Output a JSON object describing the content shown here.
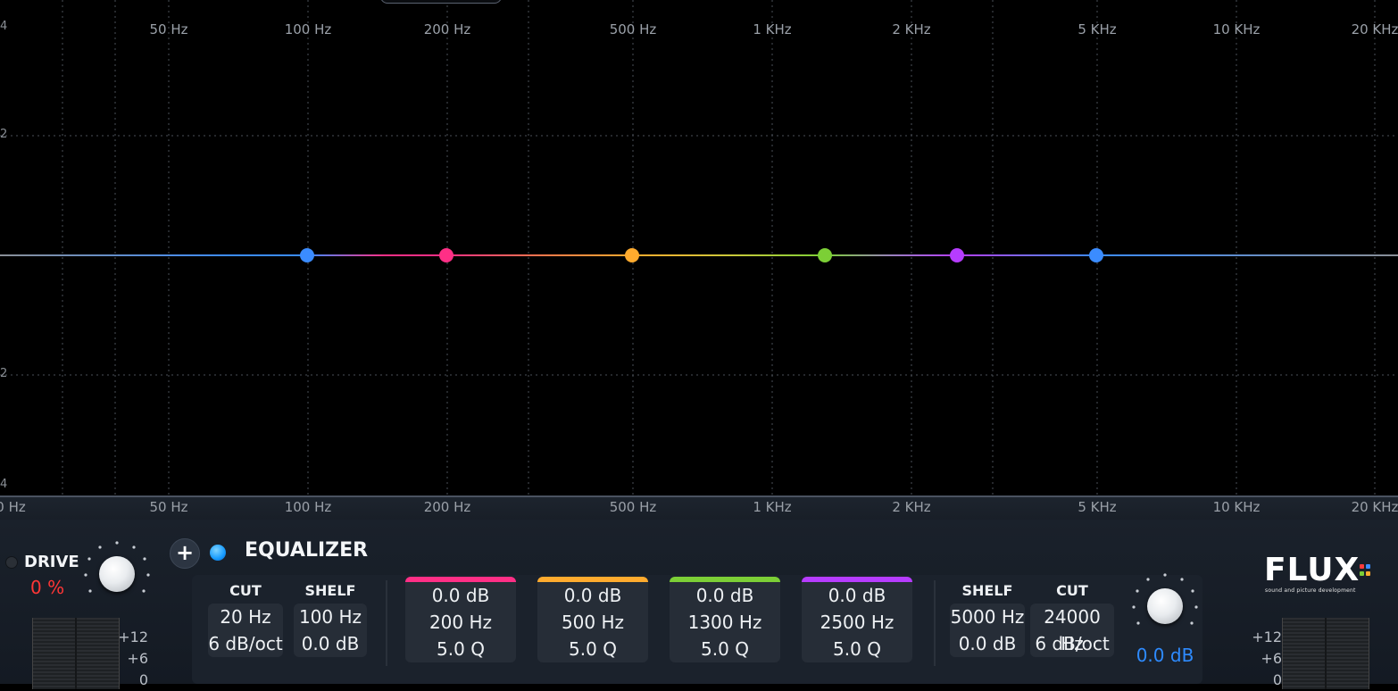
{
  "graph": {
    "freq_labels": [
      "50 Hz",
      "100 Hz",
      "200 Hz",
      "500 Hz",
      "1 KHz",
      "2 KHz",
      "5 KHz",
      "10 KHz",
      "20 KHz"
    ],
    "bottom_freq_labels": [
      "0 Hz",
      "50 Hz",
      "100 Hz",
      "200 Hz",
      "500 Hz",
      "1 KHz",
      "2 KHz",
      "5 KHz",
      "10 KHz",
      "20 KHz"
    ],
    "db_ticks": [
      "4",
      "2",
      "2",
      "4"
    ],
    "nodes": [
      {
        "name": "band-cut-low",
        "color": "#3b8cff"
      },
      {
        "name": "band-1",
        "color": "#ff2f86"
      },
      {
        "name": "band-2",
        "color": "#ffab2e"
      },
      {
        "name": "band-3",
        "color": "#7ccf36"
      },
      {
        "name": "band-4",
        "color": "#b63cff"
      },
      {
        "name": "band-shelf-high",
        "color": "#3b8cff"
      }
    ]
  },
  "drive": {
    "label": "DRIVE",
    "value": "0 %",
    "scale": [
      "+12",
      "+6",
      "0"
    ]
  },
  "equalizer": {
    "title": "EQUALIZER",
    "plus_glyph": "+",
    "low_cut": {
      "header": "CUT",
      "freq": "20 Hz",
      "slope": "6 dB/oct"
    },
    "low_shelf": {
      "header": "SHELF",
      "freq": "100 Hz",
      "gain": "0.0 dB"
    },
    "bands": [
      {
        "gain": "0.0 dB",
        "freq": "200 Hz",
        "q": "5.0 Q",
        "color": "#ff2f86"
      },
      {
        "gain": "0.0 dB",
        "freq": "500 Hz",
        "q": "5.0 Q",
        "color": "#ffab2e"
      },
      {
        "gain": "0.0 dB",
        "freq": "1300 Hz",
        "q": "5.0 Q",
        "color": "#7ccf36"
      },
      {
        "gain": "0.0 dB",
        "freq": "2500 Hz",
        "q": "5.0 Q",
        "color": "#b63cff"
      }
    ],
    "high_shelf": {
      "header": "SHELF",
      "freq": "5000 Hz",
      "gain": "0.0 dB"
    },
    "high_cut": {
      "header": "CUT",
      "freq": "24000 Hz",
      "slope": "6 dB/oct"
    },
    "output_gain": "0.0 dB"
  },
  "output": {
    "scale": [
      "+12",
      "+6",
      "0"
    ]
  },
  "brand": {
    "logo": "FLUX",
    "tagline": "sound and picture development"
  },
  "colors": {
    "accent_blue": "#2e8bff",
    "drive_red": "#ff3636"
  }
}
